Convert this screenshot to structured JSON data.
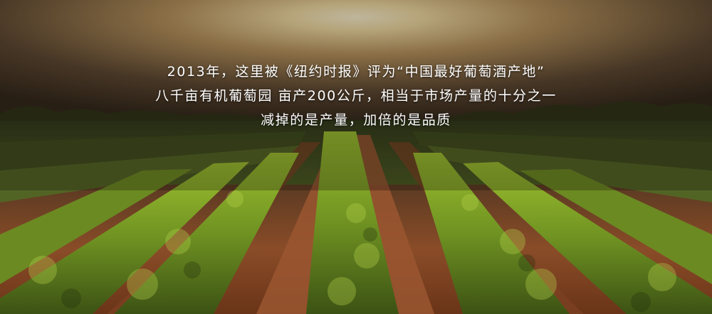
{
  "caption": {
    "line1": "2013年，这里被《纽约时报》评为“中国最好葡萄酒产地”",
    "line2": "八千亩有机葡萄园 亩产200公斤，相当于市场产量的十分之一",
    "line3": "减掉的是产量，加倍的是品质"
  },
  "colors": {
    "sky_glow": "#fff3c8",
    "sky_dark": "#3b2e20",
    "vine_green": "#7fa528",
    "soil": "#8a4a26"
  }
}
